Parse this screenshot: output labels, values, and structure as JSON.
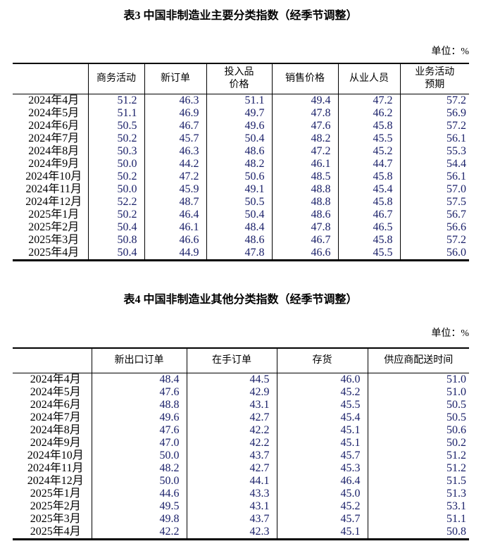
{
  "table3": {
    "title": "表3 中国非制造业主要分类指数（经季节调整）",
    "unit_label": "单位：%",
    "columns": [
      "商务活动",
      "新订单",
      "投入品\n价格",
      "销售价格",
      "从业人员",
      "业务活动\n预期"
    ],
    "rows": [
      {
        "period": "2024年4月",
        "values": [
          "51.2",
          "46.3",
          "51.1",
          "49.4",
          "47.2",
          "57.2"
        ]
      },
      {
        "period": "2024年5月",
        "values": [
          "51.1",
          "46.9",
          "49.7",
          "47.8",
          "46.2",
          "56.9"
        ]
      },
      {
        "period": "2024年6月",
        "values": [
          "50.5",
          "46.7",
          "49.6",
          "47.6",
          "45.8",
          "57.2"
        ]
      },
      {
        "period": "2024年7月",
        "values": [
          "50.2",
          "45.7",
          "50.4",
          "48.2",
          "45.5",
          "56.1"
        ]
      },
      {
        "period": "2024年8月",
        "values": [
          "50.3",
          "46.3",
          "48.6",
          "47.2",
          "45.2",
          "55.3"
        ]
      },
      {
        "period": "2024年9月",
        "values": [
          "50.0",
          "44.2",
          "48.2",
          "46.1",
          "44.7",
          "54.4"
        ]
      },
      {
        "period": "2024年10月",
        "values": [
          "50.2",
          "47.2",
          "50.6",
          "48.5",
          "45.8",
          "56.1"
        ]
      },
      {
        "period": "2024年11月",
        "values": [
          "50.0",
          "45.9",
          "49.1",
          "48.8",
          "45.4",
          "57.0"
        ]
      },
      {
        "period": "2024年12月",
        "values": [
          "52.2",
          "48.7",
          "50.5",
          "48.8",
          "45.8",
          "57.5"
        ]
      },
      {
        "period": "2025年1月",
        "values": [
          "50.2",
          "46.4",
          "50.4",
          "48.6",
          "46.7",
          "56.7"
        ]
      },
      {
        "period": "2025年2月",
        "values": [
          "50.4",
          "46.1",
          "48.4",
          "47.8",
          "46.5",
          "56.6"
        ]
      },
      {
        "period": "2025年3月",
        "values": [
          "50.8",
          "46.6",
          "48.6",
          "46.7",
          "45.8",
          "57.2"
        ]
      },
      {
        "period": "2025年4月",
        "values": [
          "50.4",
          "44.9",
          "47.8",
          "46.6",
          "45.5",
          "56.0"
        ]
      }
    ]
  },
  "table4": {
    "title": "表4 中国非制造业其他分类指数（经季节调整）",
    "unit_label": "单位：%",
    "columns": [
      "新出口订单",
      "在手订单",
      "存货",
      "供应商配送时间"
    ],
    "rows": [
      {
        "period": "2024年4月",
        "values": [
          "48.4",
          "44.5",
          "46.0",
          "51.0"
        ]
      },
      {
        "period": "2024年5月",
        "values": [
          "47.6",
          "42.9",
          "45.2",
          "51.0"
        ]
      },
      {
        "period": "2024年6月",
        "values": [
          "48.8",
          "43.1",
          "45.5",
          "50.5"
        ]
      },
      {
        "period": "2024年7月",
        "values": [
          "49.6",
          "42.7",
          "45.4",
          "50.5"
        ]
      },
      {
        "period": "2024年8月",
        "values": [
          "47.6",
          "42.2",
          "45.1",
          "50.6"
        ]
      },
      {
        "period": "2024年9月",
        "values": [
          "47.0",
          "42.2",
          "45.1",
          "50.2"
        ]
      },
      {
        "period": "2024年10月",
        "values": [
          "50.0",
          "43.7",
          "45.7",
          "51.2"
        ]
      },
      {
        "period": "2024年11月",
        "values": [
          "48.2",
          "42.7",
          "45.3",
          "51.2"
        ]
      },
      {
        "period": "2024年12月",
        "values": [
          "50.0",
          "44.1",
          "46.4",
          "51.5"
        ]
      },
      {
        "period": "2025年1月",
        "values": [
          "44.6",
          "43.3",
          "45.0",
          "51.3"
        ]
      },
      {
        "period": "2025年2月",
        "values": [
          "49.5",
          "43.1",
          "45.2",
          "53.1"
        ]
      },
      {
        "period": "2025年3月",
        "values": [
          "49.8",
          "43.7",
          "45.7",
          "51.1"
        ]
      },
      {
        "period": "2025年4月",
        "values": [
          "42.2",
          "42.3",
          "45.1",
          "50.8"
        ]
      }
    ]
  }
}
